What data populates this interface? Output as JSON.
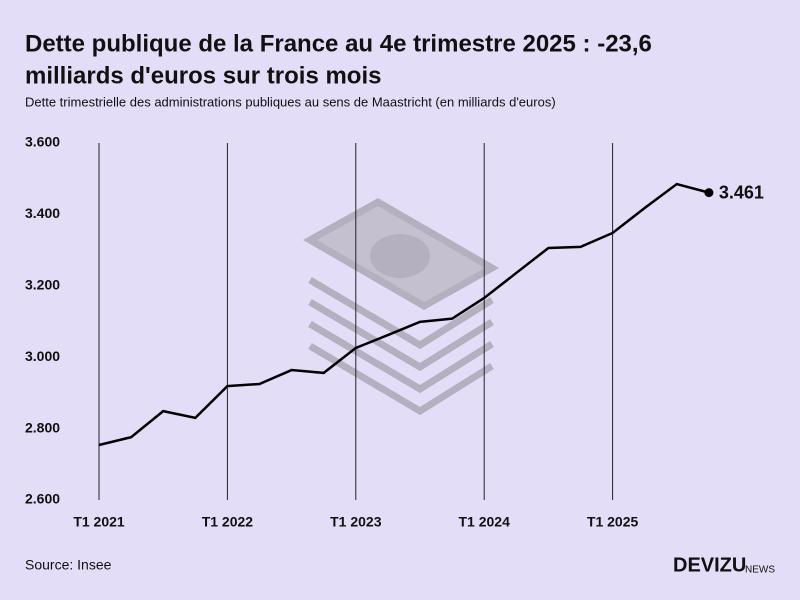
{
  "chart_data": {
    "type": "line",
    "title": [
      "Dette publique de la France au 4e trimestre 2025 : -23,6",
      "milliards d'euros sur trois mois"
    ],
    "subtitle": "Dette trimestrielle des administrations publiques au sens de Maastricht (en milliards d'euros)",
    "categories": [
      "T1 2021",
      null,
      null,
      null,
      "T1 2022",
      null,
      null,
      null,
      "T1 2023",
      null,
      null,
      null,
      "T1 2024",
      null,
      null,
      null,
      "T1 2025",
      null,
      null,
      null
    ],
    "values": [
      2754,
      2776,
      2849,
      2830,
      2919,
      2925,
      2964,
      2956,
      3026,
      3062,
      3099,
      3108,
      3166,
      3236,
      3306,
      3309,
      3348,
      3418,
      3485,
      3461
    ],
    "value_labels": [
      null,
      null,
      null,
      null,
      null,
      null,
      null,
      null,
      null,
      null,
      null,
      null,
      null,
      null,
      null,
      null,
      null,
      null,
      null,
      "3.461"
    ],
    "color": "#000000",
    "ylim": [
      2600,
      3600
    ],
    "yticks": [
      {
        "value": 2600,
        "label": "2.600"
      },
      {
        "value": 2800,
        "label": "2.800"
      },
      {
        "value": 3000,
        "label": "3.000"
      },
      {
        "value": 3200,
        "label": "3.200"
      },
      {
        "value": 3400,
        "label": "3.400"
      },
      {
        "value": 3600,
        "label": "3.600"
      }
    ],
    "source": "Source: Insee",
    "brand": {
      "name": "DEVIZU",
      "suffix": "NEWS"
    }
  }
}
